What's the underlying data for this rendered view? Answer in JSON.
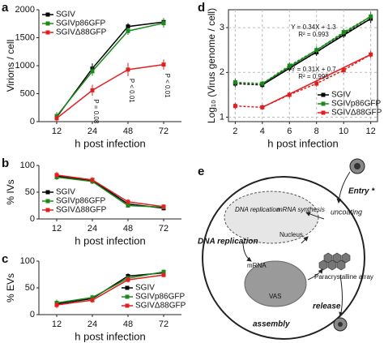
{
  "chart_data": [
    {
      "type": "line",
      "panel_label": "a",
      "x_label": "h post infection",
      "y_label": "Virions / cell",
      "categories": [
        "12",
        "24",
        "48",
        "72"
      ],
      "ylim": [
        0,
        2000
      ],
      "yticks": [
        0,
        500,
        1000,
        1500,
        2000
      ],
      "legend": "upper left",
      "grid": false,
      "trend_lines": false,
      "series": [
        {
          "name": "SGIV",
          "color": "#000000",
          "values": [
            80,
            950,
            1700,
            1780
          ],
          "errors": [
            60,
            90,
            60,
            70
          ]
        },
        {
          "name": "SGIVp86GFP",
          "color": "#1a8a1a",
          "values": [
            100,
            900,
            1620,
            1760
          ],
          "errors": [
            70,
            80,
            70,
            80
          ]
        },
        {
          "name": "SGIVΔ88GFP",
          "color": "#e02020",
          "values": [
            60,
            560,
            930,
            1020
          ],
          "errors": [
            50,
            100,
            120,
            90
          ]
        }
      ],
      "annotations": [
        "P = 0.08",
        "P < 0.01",
        "P < 0.01"
      ]
    },
    {
      "type": "line",
      "panel_label": "b",
      "x_label": "h post infection",
      "y_label": "% IVs",
      "categories": [
        "12",
        "24",
        "48",
        "72"
      ],
      "ylim": [
        0,
        100
      ],
      "yticks": [
        0,
        50,
        100
      ],
      "legend": "lower left",
      "grid": false,
      "trend_lines": false,
      "series": [
        {
          "name": "SGIV",
          "color": "#000000",
          "values": [
            80,
            72,
            28,
            20
          ],
          "errors": [
            6,
            5,
            4,
            4
          ]
        },
        {
          "name": "SGIVp86GFP",
          "color": "#1a8a1a",
          "values": [
            78,
            70,
            25,
            22
          ],
          "errors": [
            5,
            5,
            4,
            4
          ]
        },
        {
          "name": "SGIVΔ88GFP",
          "color": "#e02020",
          "values": [
            82,
            73,
            32,
            23
          ],
          "errors": [
            6,
            5,
            5,
            4
          ]
        }
      ]
    },
    {
      "type": "line",
      "panel_label": "c",
      "x_label": "h post infection",
      "y_label": "% EVs",
      "categories": [
        "12",
        "24",
        "48",
        "72"
      ],
      "ylim": [
        0,
        100
      ],
      "yticks": [
        0,
        50,
        100
      ],
      "legend": "lower right",
      "grid": false,
      "trend_lines": false,
      "series": [
        {
          "name": "SGIV",
          "color": "#000000",
          "values": [
            20,
            30,
            72,
            78
          ],
          "errors": [
            6,
            5,
            5,
            4
          ]
        },
        {
          "name": "SGIVp86GFP",
          "color": "#1a8a1a",
          "values": [
            22,
            32,
            68,
            80
          ],
          "errors": [
            6,
            5,
            5,
            4
          ]
        },
        {
          "name": "SGIVΔ88GFP",
          "color": "#e02020",
          "values": [
            18,
            27,
            65,
            74
          ],
          "errors": [
            6,
            5,
            5,
            4
          ]
        }
      ]
    },
    {
      "type": "line",
      "panel_label": "d",
      "x_label": "h post infection",
      "y_label": "Log₁₀ (Virus genome / cell)",
      "x": [
        2,
        4,
        6,
        8,
        10,
        12
      ],
      "xlim": [
        1.5,
        12.5
      ],
      "xticks": [
        2,
        4,
        6,
        8,
        10,
        12
      ],
      "ylim": [
        0.9,
        3.4
      ],
      "yticks": [
        1,
        2,
        3
      ],
      "legend": "lower right",
      "grid": true,
      "trend_lines": true,
      "series": [
        {
          "name": "SGIV",
          "color": "#000000",
          "values": [
            1.75,
            1.72,
            2.1,
            2.45,
            2.85,
            3.2
          ],
          "errors": [
            0.08,
            0.06,
            0.08,
            0.08,
            0.08,
            0.1
          ]
        },
        {
          "name": "SGIVp86GFP",
          "color": "#1a8a1a",
          "values": [
            1.78,
            1.75,
            2.15,
            2.5,
            2.9,
            3.25
          ],
          "errors": [
            0.08,
            0.06,
            0.08,
            0.08,
            0.08,
            0.1
          ]
        },
        {
          "name": "SGIVΔ88GFP",
          "color": "#e02020",
          "values": [
            1.25,
            1.22,
            1.5,
            1.75,
            2.05,
            2.4
          ],
          "errors": [
            0.07,
            0.06,
            0.07,
            0.07,
            0.08,
            0.08
          ]
        }
      ],
      "fits": [
        {
          "equation": "Y = 0.34X + 1.3",
          "r2": "R² = 0.993"
        },
        {
          "equation": "Y = 0.31X + 0.7",
          "r2": "R² = 0.995"
        }
      ]
    }
  ],
  "diagram": {
    "panel_label": "e",
    "entry": "Entry *",
    "uncoating": "uncoating",
    "nuclear_replication": "DNA replication",
    "mrna_synthesis": "mRNA synthesis",
    "nucleus": "Nucleus",
    "dna_replication": "DNA replication",
    "mrna": "mRNA",
    "vas": "VAS",
    "array": "Paracrystalline array",
    "release": "release",
    "assembly": "assembly"
  }
}
